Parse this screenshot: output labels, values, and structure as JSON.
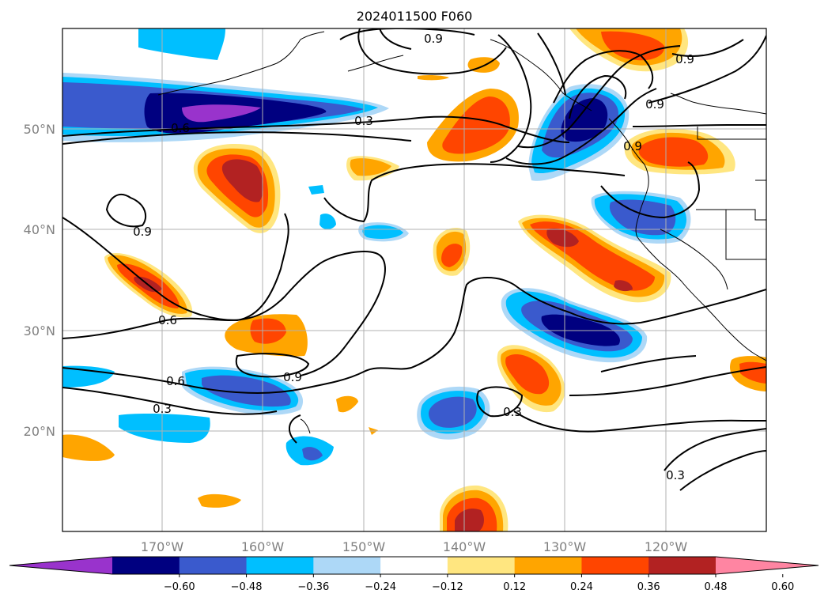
{
  "title": "2024011500 F060",
  "map": {
    "latitude_labels": [
      "50°N",
      "40°N",
      "30°N",
      "20°N"
    ],
    "longitude_labels": [
      "170°W",
      "160°W",
      "150°W",
      "140°W",
      "130°W",
      "120°W"
    ],
    "gridlines": true
  },
  "contour_labels": [
    "0.9",
    "0.9",
    "0.9",
    "0.9",
    "0.3",
    "0.6",
    "0.9",
    "0.6",
    "0.9",
    "0.6",
    "0.3",
    "0.3",
    "0.3"
  ],
  "colorbar": {
    "orientation": "horizontal",
    "extend": "both",
    "tick_labels": [
      "−0.60",
      "−0.48",
      "−0.36",
      "−0.24",
      "−0.12",
      "0.12",
      "0.24",
      "0.36",
      "0.48",
      "0.60"
    ],
    "colors": [
      "#9933cc",
      "#000080",
      "#3a5acd",
      "#00bfff",
      "#add8f7",
      "#ffffff",
      "#ffe680",
      "#ffa500",
      "#ff4500",
      "#b22222",
      "#ff85a2"
    ]
  }
}
